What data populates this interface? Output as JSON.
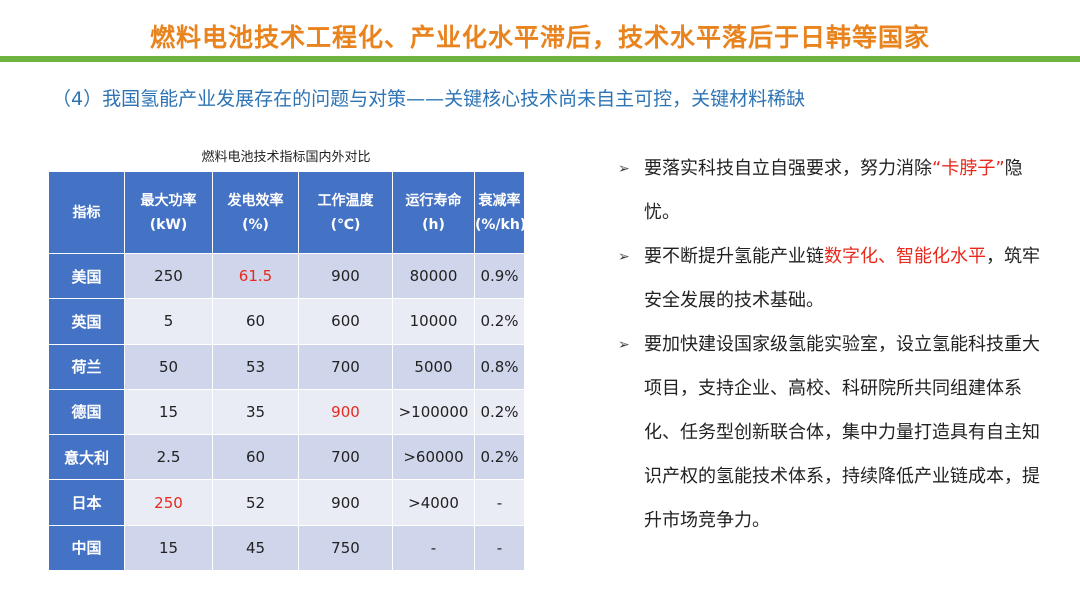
{
  "header": {
    "title": "燃料电池技术工程化、产业化水平滞后，技术水平落后于日韩等国家",
    "subtitle": "（4）我国氢能产业发展存在的问题与对策——关键核心技术尚未自主可控，关键材料稀缺"
  },
  "table": {
    "caption": "燃料电池技术指标国内外对比",
    "columns": [
      {
        "line1": "指标",
        "line2": ""
      },
      {
        "line1": "最大功率",
        "line2": "(kW)"
      },
      {
        "line1": "发电效率",
        "line2": "(%)"
      },
      {
        "line1": "工作温度",
        "line2": "(℃)"
      },
      {
        "line1": "运行寿命",
        "line2": "(h)"
      },
      {
        "line1": "衰减率",
        "line2": "(%/kh)"
      }
    ],
    "rows": [
      {
        "country": "美国",
        "cells": [
          "250",
          "61.5",
          "900",
          "80000",
          "0.9%"
        ]
      },
      {
        "country": "英国",
        "cells": [
          "5",
          "60",
          "600",
          "10000",
          "0.2%"
        ]
      },
      {
        "country": "荷兰",
        "cells": [
          "50",
          "53",
          "700",
          "5000",
          "0.8%"
        ]
      },
      {
        "country": "德国",
        "cells": [
          "15",
          "35",
          "900",
          ">100000",
          "0.2%"
        ]
      },
      {
        "country": "意大利",
        "cells": [
          "2.5",
          "60",
          "700",
          ">60000",
          "0.2%"
        ]
      },
      {
        "country": "日本",
        "cells": [
          "250",
          "52",
          "900",
          ">4000",
          "-"
        ]
      },
      {
        "country": "中国",
        "cells": [
          "15",
          "45",
          "750",
          "-",
          "-"
        ]
      }
    ],
    "highlight_color": "#e8291c"
  },
  "bullets": [
    {
      "pre": "要落实科技自立自强要求，努力消除",
      "red": "“卡脖子”",
      "post": "隐忧。"
    },
    {
      "pre": "要不断提升氢能产业链",
      "red": "数字化、智能化水平",
      "post": "，筑牢安全发展的技术基础。"
    },
    {
      "pre": "要加快建设国家级氢能实验室，设立氢能科技重大项目，支持企业、高校、科研院所共同组建体系化、任务型创新联合体，集中力量打造具有自主知识产权的氢能技术体系，持续降低产业链成本，提升市场竞争力。",
      "red": "",
      "post": ""
    }
  ],
  "colors": {
    "title": "#e8831e",
    "bar": "#6db33f",
    "subtitle": "#2e74b5",
    "table_header": "#4472c4"
  }
}
